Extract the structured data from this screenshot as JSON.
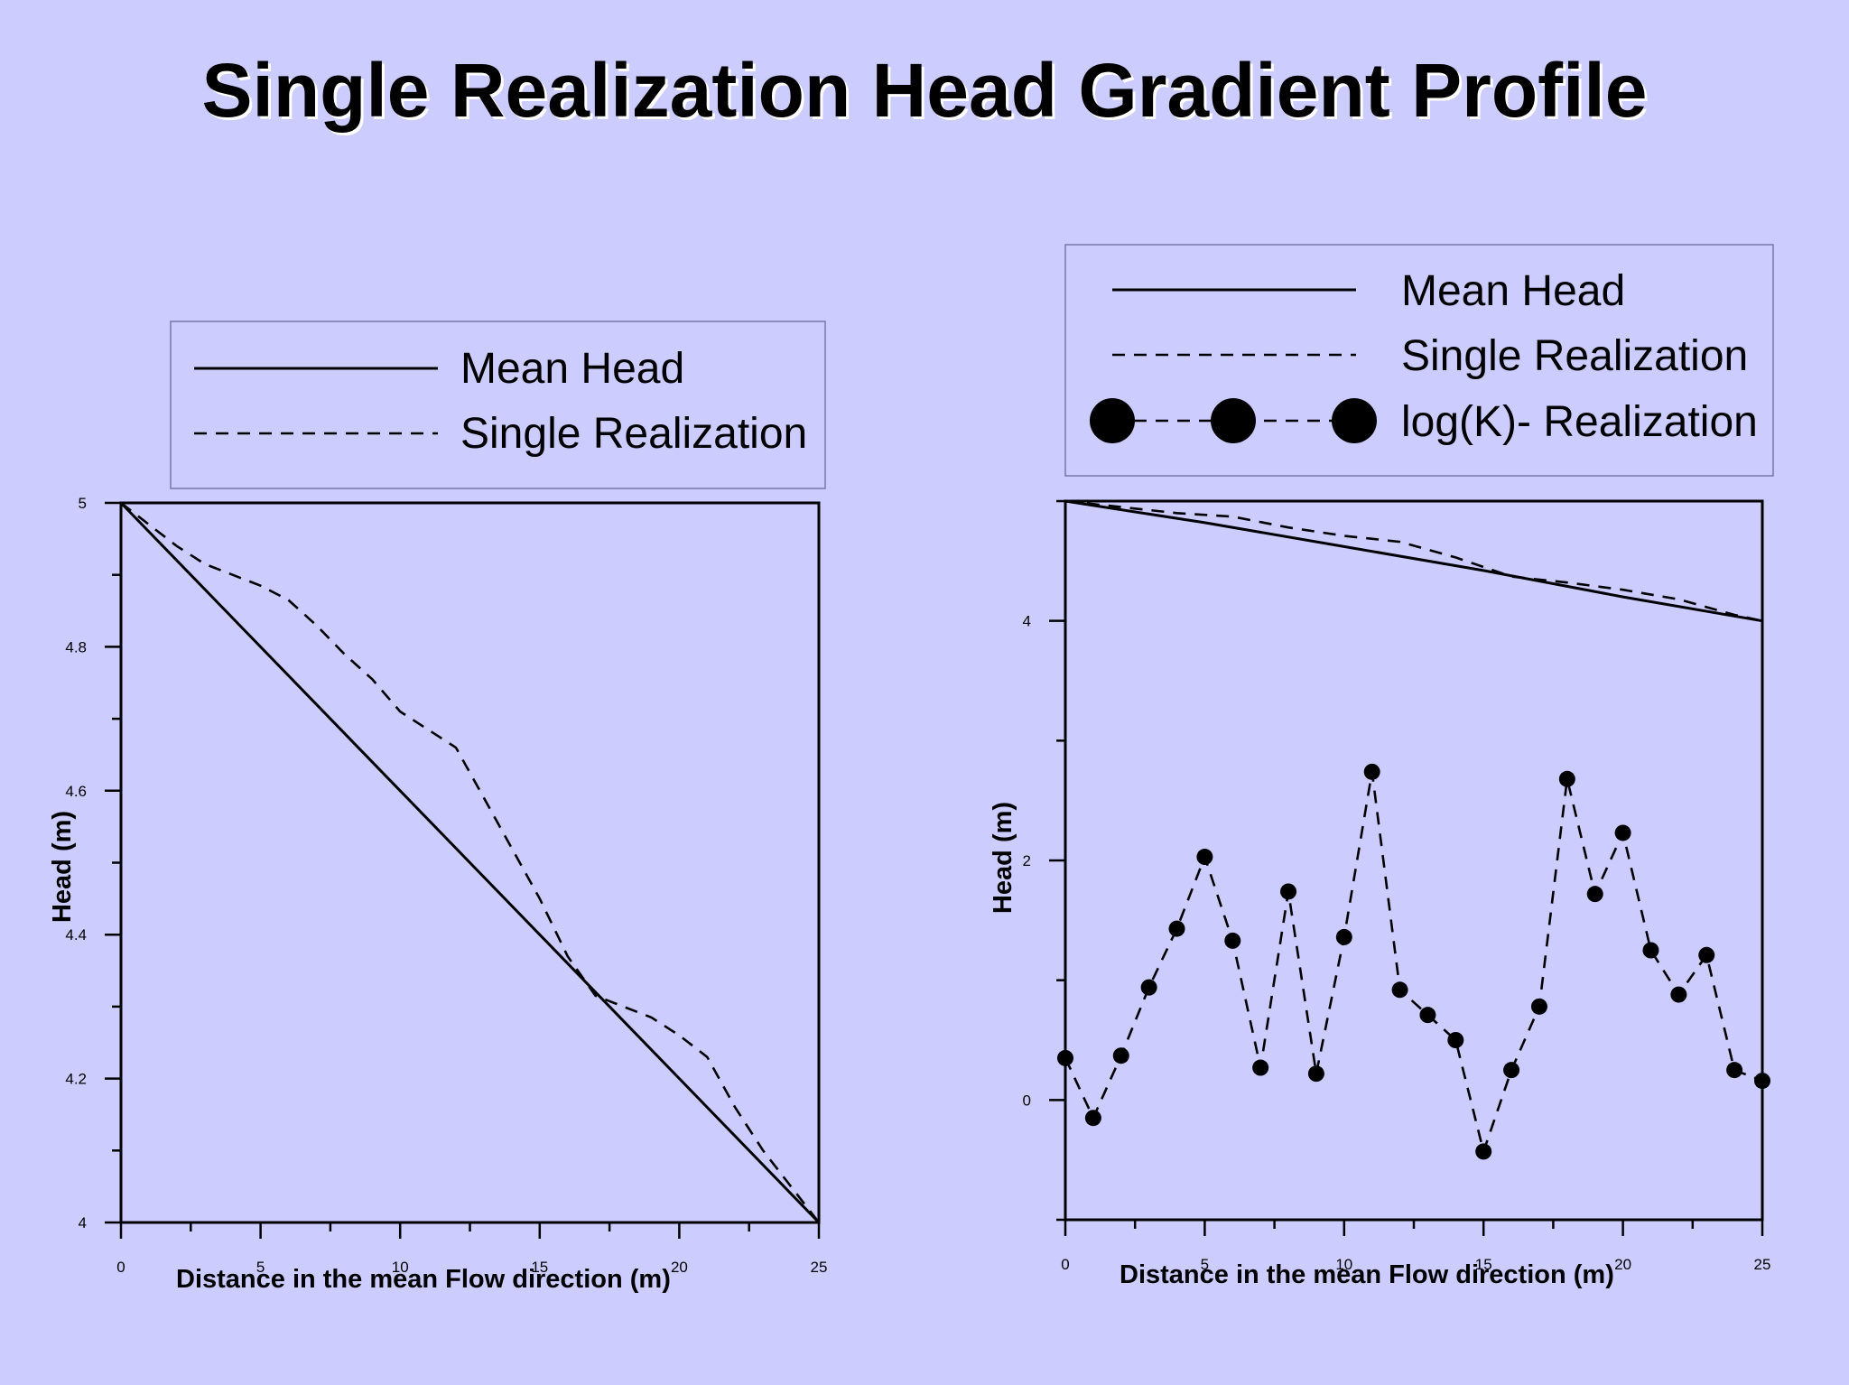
{
  "title": "Single Realization Head Gradient Profile",
  "chart_data": [
    {
      "type": "line",
      "xlabel": "Distance in the mean Flow direction (m)",
      "ylabel": "Head (m)",
      "xlim": [
        0,
        25
      ],
      "ylim": [
        4,
        5
      ],
      "x_ticks": [
        "0",
        "5",
        "10",
        "15",
        "20",
        "25"
      ],
      "y_ticks": [
        "4",
        "4.2",
        "4.4",
        "4.6",
        "4.8",
        "5"
      ],
      "legend": [
        "Mean Head",
        "Single Realization"
      ],
      "series": [
        {
          "name": "Mean Head",
          "style": "solid",
          "x": [
            0,
            25
          ],
          "values": [
            5.0,
            4.0
          ]
        },
        {
          "name": "Single Realization",
          "style": "dashed",
          "x": [
            0,
            1,
            2,
            3,
            4,
            5,
            6,
            7,
            8,
            9,
            10,
            11,
            12,
            13,
            14,
            15,
            16,
            17,
            18,
            19,
            20,
            21,
            22,
            23,
            24,
            25
          ],
          "values": [
            5.0,
            4.97,
            4.94,
            4.915,
            4.9,
            4.885,
            4.865,
            4.83,
            4.79,
            4.755,
            4.71,
            4.685,
            4.66,
            4.59,
            4.52,
            4.45,
            4.37,
            4.315,
            4.3,
            4.285,
            4.26,
            4.23,
            4.16,
            4.1,
            4.05,
            4.0
          ]
        }
      ]
    },
    {
      "type": "line",
      "xlabel": "Distance in the mean Flow direction (m)",
      "ylabel": "Head (m)",
      "xlim": [
        0,
        25
      ],
      "ylim": [
        -1,
        5
      ],
      "x_ticks": [
        "0",
        "5",
        "10",
        "15",
        "20",
        "25"
      ],
      "y_ticks": [
        "0",
        "2",
        "4"
      ],
      "legend": [
        "Mean Head",
        "Single Realization",
        "log(K)- Realization"
      ],
      "series": [
        {
          "name": "Mean Head",
          "style": "solid",
          "x": [
            0,
            5,
            10,
            15,
            20,
            25
          ],
          "values": [
            5.0,
            4.82,
            4.62,
            4.42,
            4.2,
            4.0
          ]
        },
        {
          "name": "Single Realization",
          "style": "dashed",
          "x": [
            0,
            2,
            4,
            6,
            8,
            10,
            12,
            14,
            16,
            18,
            20,
            22,
            24,
            25
          ],
          "values": [
            5.0,
            4.95,
            4.9,
            4.87,
            4.78,
            4.71,
            4.66,
            4.53,
            4.37,
            4.32,
            4.26,
            4.18,
            4.05,
            4.0
          ]
        },
        {
          "name": "log(K)- Realization",
          "style": "dashed-markers",
          "x": [
            0,
            1,
            2,
            3,
            4,
            5,
            6,
            7,
            8,
            9,
            10,
            11,
            12,
            13,
            14,
            15,
            16,
            17,
            18,
            19,
            20,
            21,
            22,
            23,
            24,
            25
          ],
          "values": [
            0.35,
            -0.15,
            0.37,
            0.94,
            1.43,
            2.03,
            1.33,
            0.27,
            1.74,
            0.22,
            1.36,
            2.74,
            0.92,
            0.71,
            0.5,
            -0.43,
            0.25,
            0.78,
            2.68,
            1.72,
            2.23,
            1.25,
            0.88,
            1.21,
            0.25,
            0.16
          ]
        }
      ]
    }
  ]
}
